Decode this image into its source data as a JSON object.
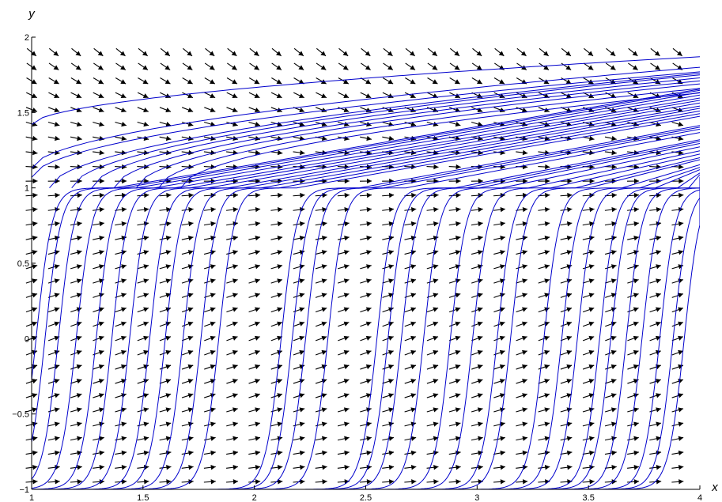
{
  "chart_data": {
    "type": "direction-field",
    "title": "",
    "xlabel": "x",
    "ylabel": "y",
    "xlim": [
      1,
      4
    ],
    "ylim": [
      -1,
      2
    ],
    "x_ticks": [
      1,
      1.5,
      2,
      2.5,
      3,
      3.5,
      4
    ],
    "x_tick_labels": [
      "1",
      "1.5",
      "2",
      "2.5",
      "3",
      "3.5",
      "4"
    ],
    "y_ticks": [
      -1,
      -0.5,
      0,
      0.5,
      1,
      1.5,
      2
    ],
    "y_tick_labels": [
      "−1",
      "−0.5",
      "0",
      "0.5",
      "1",
      "1.5",
      "2"
    ],
    "grid": false,
    "field": {
      "x_start": 1.0,
      "x_end": 3.9,
      "x_step": 0.1,
      "y_start": -0.95,
      "y_end": 1.9,
      "y_step": 0.095,
      "arrow_color": "#000000"
    },
    "solution_curves": {
      "color": "#0000cc",
      "shape_parameter": 4.0,
      "asymptote_y": 1.0,
      "low_start_y": -1.0,
      "crossings_x": [
        1.02,
        1.06,
        1.12,
        1.2,
        1.29,
        1.36,
        1.44,
        1.53,
        1.6,
        1.68,
        1.76,
        1.84,
        2.12,
        2.17,
        2.23,
        2.33,
        2.55,
        2.6,
        2.66,
        2.76,
        2.88,
        2.98,
        3.09,
        3.15,
        3.3,
        3.38,
        3.45,
        3.55,
        3.6,
        3.67,
        3.74,
        3.82,
        3.88,
        3.93
      ],
      "upper_curves": [
        {
          "x0": 1.0,
          "y0": 1.42,
          "x1": 4.0,
          "y1": 1.87
        },
        {
          "x0": 1.0,
          "y0": 1.13,
          "x1": 4.0,
          "y1": 1.8
        },
        {
          "x0": 1.0,
          "y0": 1.07,
          "x1": 4.0,
          "y1": 1.77
        },
        {
          "x0": 1.08,
          "y0": 1.0,
          "x1": 4.0,
          "y1": 1.76
        },
        {
          "x0": 1.18,
          "y0": 1.0,
          "x1": 4.0,
          "y1": 1.75
        },
        {
          "x0": 1.27,
          "y0": 1.0,
          "x1": 4.0,
          "y1": 1.73
        },
        {
          "x0": 1.37,
          "y0": 1.0,
          "x1": 4.0,
          "y1": 1.71
        },
        {
          "x0": 1.47,
          "y0": 1.0,
          "x1": 4.0,
          "y1": 1.69
        },
        {
          "x0": 1.57,
          "y0": 1.0,
          "x1": 4.0,
          "y1": 1.66
        },
        {
          "x0": 1.67,
          "y0": 1.0,
          "x1": 4.0,
          "y1": 1.63
        }
      ]
    }
  }
}
